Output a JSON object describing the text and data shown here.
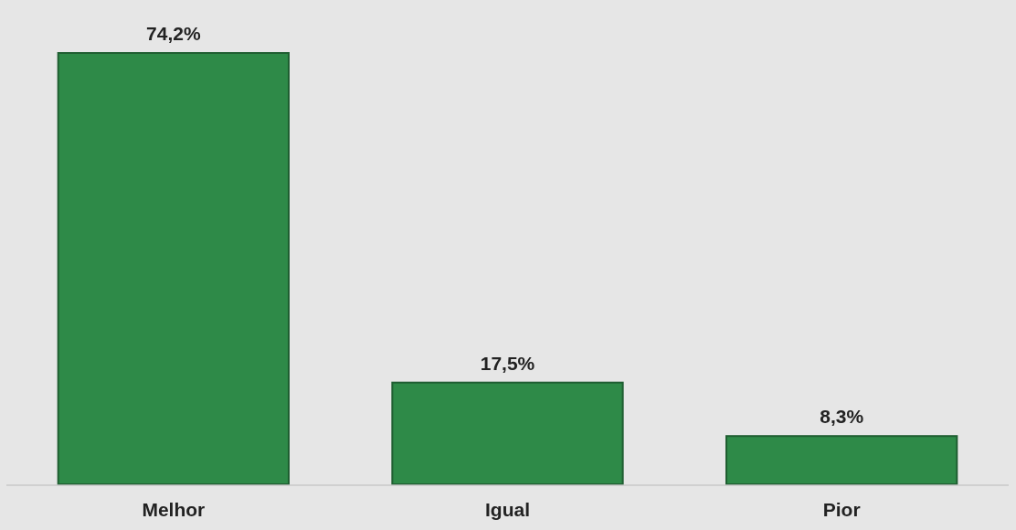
{
  "chart_data": {
    "type": "bar",
    "categories": [
      "Melhor",
      "Igual",
      "Pior"
    ],
    "values": [
      74.2,
      17.5,
      8.3
    ],
    "value_labels": [
      "74,2%",
      "17,5%",
      "8,3%"
    ],
    "color": "#2e8a48"
  }
}
